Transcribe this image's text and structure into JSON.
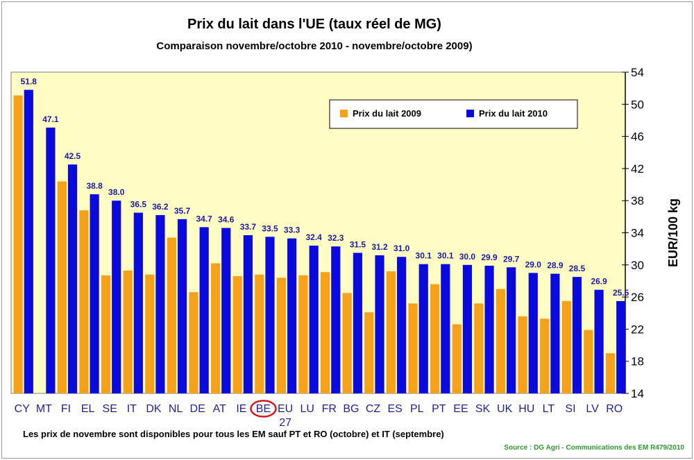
{
  "title": "Prix du lait dans l'UE (taux réel de MG)",
  "subtitle": "Comparaison novembre/octobre 2010 - novembre/octobre 2009)",
  "note": "Les prix de novembre sont disponibles pour tous les EM sauf PT et RO (octobre) et IT (septembre)",
  "source": "Source : DG Agri - Communications des EM R479/2010",
  "colors": {
    "series_2009": "#f5a11c",
    "series_2010": "#0a0adc",
    "plot_bg": "#fffdc4",
    "label": "#1a1aa0",
    "highlight_circle": "#d0161c"
  },
  "chart_data": {
    "type": "bar",
    "title": "Prix du lait dans l'UE (taux réel de MG)",
    "ylabel": "EUR/100 kg",
    "ylim": [
      14,
      54
    ],
    "yticks": [
      14,
      18,
      22,
      26,
      30,
      34,
      38,
      42,
      46,
      50,
      54
    ],
    "y_axis_position": "right",
    "legend_position": "top-center",
    "grid": false,
    "highlighted_category": "BE",
    "categories": [
      "CY",
      "MT",
      "FI",
      "EL",
      "SE",
      "IT",
      "DK",
      "NL",
      "DE",
      "AT",
      "IE",
      "BE",
      "EU 27",
      "LU",
      "FR",
      "BG",
      "CZ",
      "ES",
      "PL",
      "PT",
      "EE",
      "SK",
      "UK",
      "HU",
      "LT",
      "SI",
      "LV",
      "RO"
    ],
    "series": [
      {
        "name": "Prix du lait 2009",
        "values": [
          51.1,
          null,
          40.4,
          36.8,
          28.7,
          29.3,
          28.8,
          33.4,
          26.6,
          30.2,
          28.6,
          28.8,
          28.4,
          28.7,
          29.1,
          26.5,
          24.1,
          29.2,
          25.2,
          27.6,
          22.6,
          25.2,
          27.0,
          23.6,
          23.3,
          25.5,
          21.9,
          19.0
        ]
      },
      {
        "name": "Prix du lait 2010",
        "values": [
          51.8,
          47.1,
          42.5,
          38.8,
          38.0,
          36.5,
          36.2,
          35.7,
          34.7,
          34.6,
          33.7,
          33.5,
          33.3,
          32.4,
          32.3,
          31.5,
          31.2,
          31.0,
          30.1,
          30.1,
          30.0,
          29.9,
          29.7,
          29.0,
          28.9,
          28.5,
          26.9,
          25.5
        ],
        "data_labels": [
          "51.8",
          "47.1",
          "42.5",
          "38.8",
          "38.0",
          "36.5",
          "36.2",
          "35.7",
          "34.7",
          "34.6",
          "33.7",
          "33.5",
          "33.3",
          "32.4",
          "32.3",
          "31.5",
          "31.2",
          "31.0",
          "30.1",
          "30.1",
          "30.0",
          "29.9",
          "29.7",
          "29.0",
          "28.9",
          "28.5",
          "26.9",
          "25.5"
        ]
      }
    ]
  }
}
